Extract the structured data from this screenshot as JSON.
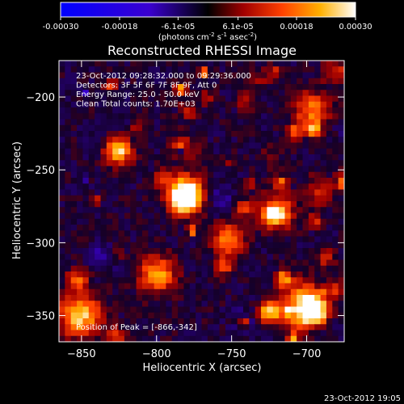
{
  "chart_data": {
    "type": "heatmap",
    "title": "Reconstructed RHESSI Image",
    "xlabel": "Heliocentric X (arcsec)",
    "ylabel": "Heliocentric Y (arcsec)",
    "xlim": [
      -865,
      -675
    ],
    "ylim": [
      -368,
      -175
    ],
    "x_ticks": [
      -850,
      -800,
      -750,
      -700
    ],
    "y_ticks": [
      -350,
      -300,
      -250,
      -200
    ],
    "colorbar": {
      "range": [
        -0.0003,
        0.0003
      ],
      "tick_values": [
        -0.0003,
        -0.00018,
        -6.1e-05,
        6.1e-05,
        0.00018,
        0.0003
      ],
      "tick_labels": [
        "-0.00030",
        "-0.00018",
        "-6.1e-05",
        "6.1e-05",
        "0.00018",
        "0.00030"
      ],
      "unit_label": "(photons cm",
      "unit_exp1": "-2",
      "unit_mid": " s",
      "unit_exp2": "-1",
      "unit_mid2": " asec",
      "unit_exp3": "-2",
      "unit_close": ")"
    },
    "annotations": [
      "23-Oct-2012 09:28:32.000 to 09:29:36.000",
      "Detectors: 3F 5F 6F 7F 8F 9F, Att 0",
      "Energy Range: 25.0 - 50.0 keV",
      "Clean     Total counts: 1.70E+03"
    ],
    "peak_label": "Position of Peak = [-866,-342]",
    "peak": [
      -866,
      -342
    ],
    "grid": false
  },
  "footer_timestamp": "23-Oct-2012 19:05",
  "colors": {
    "background": "#000000",
    "text": "#ffffff"
  }
}
